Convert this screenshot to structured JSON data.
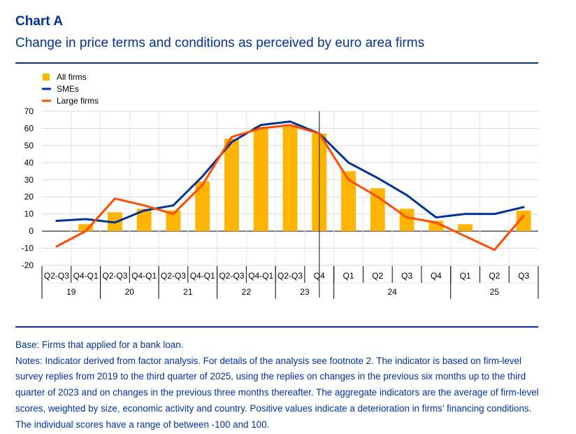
{
  "header": {
    "title": "Chart A",
    "subtitle": "Change in price terms and conditions as perceived by euro area firms"
  },
  "colors": {
    "title": "#003299",
    "all_firms": "#FFB400",
    "smes": "#003299",
    "large_firms": "#FF4B00"
  },
  "chart_data": {
    "type": "bar",
    "title": "Change in price terms and conditions as perceived by euro area firms",
    "xlabel": "",
    "ylabel": "",
    "ylim": [
      -20,
      70
    ],
    "yticks": [
      70,
      60,
      50,
      40,
      30,
      20,
      10,
      0,
      -10,
      -20
    ],
    "grid": true,
    "legend_position": "top-left",
    "categories": [
      "Q2-Q3",
      "Q4-Q1",
      "Q2-Q3",
      "Q4-Q1",
      "Q2-Q3",
      "Q4-Q1",
      "Q2-Q3",
      "Q4-Q1",
      "Q2-Q3",
      "Q4",
      "Q1",
      "Q2",
      "Q3",
      "Q4",
      "Q1",
      "Q2",
      "Q3"
    ],
    "year_groups": [
      {
        "label": "19",
        "span": 2
      },
      {
        "label": "20",
        "span": 2
      },
      {
        "label": "21",
        "span": 2
      },
      {
        "label": "22",
        "span": 2
      },
      {
        "label": "23",
        "span": 2
      },
      {
        "label": "24",
        "span": 4
      },
      {
        "label": "25",
        "span": 3
      }
    ],
    "series": [
      {
        "name": "All firms",
        "kind": "bar",
        "values": [
          null,
          4,
          11,
          13,
          12,
          29,
          54,
          61,
          62,
          57,
          35,
          25,
          13,
          6,
          4,
          null,
          12
        ]
      },
      {
        "name": "SMEs",
        "kind": "line",
        "values": [
          6,
          7,
          5,
          12,
          15,
          32,
          52,
          62,
          64,
          57,
          40,
          31,
          21,
          8,
          10,
          10,
          14
        ]
      },
      {
        "name": "Large firms",
        "kind": "line",
        "values": [
          -9,
          0,
          19,
          15,
          10,
          27,
          55,
          60,
          62,
          57,
          30,
          20,
          8,
          5,
          -3,
          -11,
          9
        ]
      }
    ],
    "divider_after_index": 9
  },
  "footer": {
    "base": "Base: Firms that applied for a bank loan.",
    "notes": "Notes: Indicator derived from factor analysis. For details of the analysis see footnote 2. The indicator is based on firm-level survey replies from 2019 to the third quarter of 2025, using the replies on changes in the previous six months up to the third quarter of 2023 and on changes in the previous three months thereafter. The aggregate indicators are the average of firm-level scores, weighted by size, economic activity and country. Positive values indicate a deterioration in firms’ financing conditions. The individual scores have a range of between -100 and 100."
  }
}
